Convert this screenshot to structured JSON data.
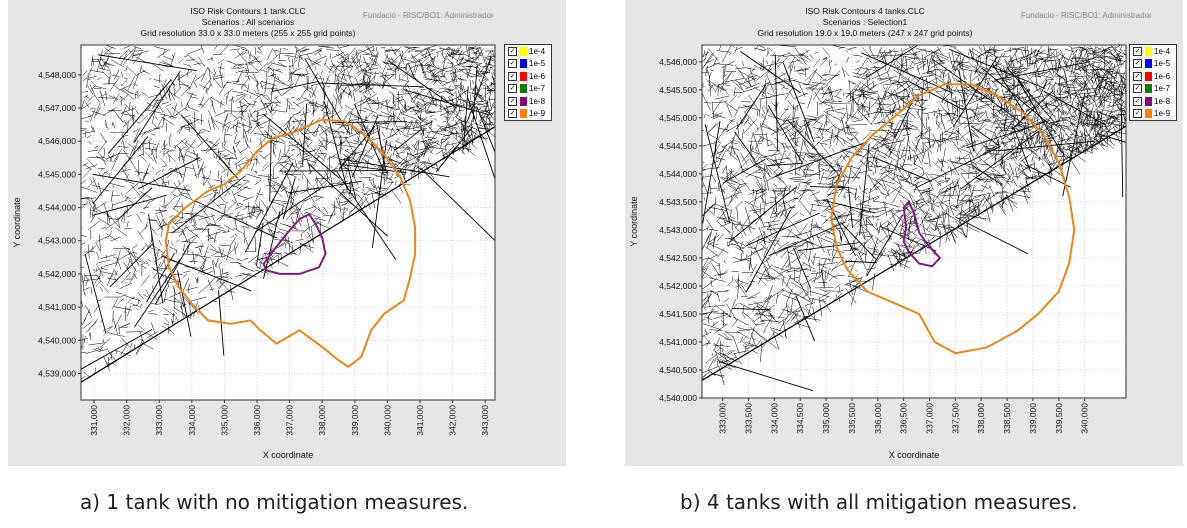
{
  "chart_data": [
    {
      "type": "contour-map",
      "title": "ISO Risk Contours  1 tank.CLC",
      "subtitle_1": "Scenarios : All scenarios",
      "subtitle_2": "Grid resolution 33.0 x 33.0 meters (255 x 255 grid points)",
      "user_info": "Fundacio - RISC/BO1: Administrador",
      "xlabel": "X coordinate",
      "ylabel": "Y coordinate",
      "xlim": [
        330600,
        343300
      ],
      "ylim": [
        4538200,
        4548900
      ],
      "x_ticks": [
        331000,
        332000,
        333000,
        334000,
        335000,
        336000,
        337000,
        338000,
        339000,
        340000,
        341000,
        342000,
        343000
      ],
      "x_tick_labels": [
        "331,000",
        "332,000",
        "333,000",
        "334,000",
        "335,000",
        "336,000",
        "337,000",
        "338,000",
        "339,000",
        "340,000",
        "341,000",
        "342,000",
        "343,000"
      ],
      "y_ticks": [
        4539000,
        4540000,
        4541000,
        4542000,
        4543000,
        4544000,
        4545000,
        4546000,
        4547000,
        4548000
      ],
      "y_tick_labels": [
        "4,539,000",
        "4,540,000",
        "4,541,000",
        "4,542,000",
        "4,543,000",
        "4,544,000",
        "4,545,000",
        "4,546,000",
        "4,547,000",
        "4,548,000"
      ],
      "legend": [
        {
          "label": "1e-4",
          "color": "#ffff00",
          "checked": true
        },
        {
          "label": "1e-5",
          "color": "#0000ff",
          "checked": true
        },
        {
          "label": "1e-6",
          "color": "#ff0000",
          "checked": true
        },
        {
          "label": "1e-7",
          "color": "#008000",
          "checked": true
        },
        {
          "label": "1e-8",
          "color": "#800080",
          "checked": true
        },
        {
          "label": "1e-9",
          "color": "#ff8000",
          "checked": true
        }
      ],
      "contours": [
        {
          "name": "1e-9",
          "color": "#e8851e",
          "points": [
            [
              333300,
              4543500
            ],
            [
              333800,
              4544000
            ],
            [
              334500,
              4544500
            ],
            [
              335000,
              4544700
            ],
            [
              335500,
              4545100
            ],
            [
              336000,
              4545700
            ],
            [
              336500,
              4546100
            ],
            [
              337200,
              4546300
            ],
            [
              338000,
              4546650
            ],
            [
              338700,
              4546600
            ],
            [
              339300,
              4546200
            ],
            [
              339900,
              4545600
            ],
            [
              340400,
              4544900
            ],
            [
              340700,
              4544200
            ],
            [
              340850,
              4543400
            ],
            [
              340850,
              4542600
            ],
            [
              340700,
              4541900
            ],
            [
              340500,
              4541200
            ],
            [
              339900,
              4540800
            ],
            [
              339500,
              4540300
            ],
            [
              339200,
              4539500
            ],
            [
              338800,
              4539200
            ],
            [
              338500,
              4539400
            ],
            [
              338000,
              4539800
            ],
            [
              337300,
              4540300
            ],
            [
              336600,
              4539900
            ],
            [
              336100,
              4540300
            ],
            [
              335800,
              4540600
            ],
            [
              335200,
              4540500
            ],
            [
              334500,
              4540600
            ],
            [
              334000,
              4541100
            ],
            [
              333600,
              4541600
            ],
            [
              333300,
              4542200
            ],
            [
              333200,
              4543000
            ],
            [
              333300,
              4543500
            ]
          ]
        },
        {
          "name": "1e-8",
          "color": "#7a1f7a",
          "points": [
            [
              336200,
              4542300
            ],
            [
              336500,
              4542700
            ],
            [
              336900,
              4543200
            ],
            [
              337300,
              4543650
            ],
            [
              337600,
              4543800
            ],
            [
              337800,
              4543500
            ],
            [
              338000,
              4543100
            ],
            [
              338100,
              4542600
            ],
            [
              337900,
              4542200
            ],
            [
              337300,
              4542000
            ],
            [
              336700,
              4542000
            ],
            [
              336300,
              4542100
            ],
            [
              336200,
              4542300
            ]
          ]
        }
      ]
    },
    {
      "type": "contour-map",
      "title": "ISO Risk Contours  4 tanks.CLC",
      "subtitle_1": "Scenarios : Selection1",
      "subtitle_2": "Grid resolution 19.0 x 19.0 meters (247 x 247 grid points)",
      "user_info": "Fundacio - RISC/BO1: Administrador",
      "xlabel": "X coordinate",
      "ylabel": "Y coordinate",
      "xlim": [
        332600,
        340800
      ],
      "ylim": [
        4540000,
        4546300
      ],
      "x_ticks": [
        333000,
        333500,
        334000,
        334500,
        335000,
        335500,
        336000,
        336500,
        337000,
        337500,
        338000,
        338500,
        339000,
        339500,
        340000
      ],
      "x_tick_labels": [
        "333,000",
        "333,500",
        "334,000",
        "334,500",
        "335,000",
        "335,500",
        "336,000",
        "336,500",
        "337,000",
        "337,500",
        "338,000",
        "338,500",
        "339,000",
        "339,500",
        "340,000"
      ],
      "y_ticks": [
        4540000,
        4540500,
        4541000,
        4541500,
        4542000,
        4542500,
        4543000,
        4543500,
        4544000,
        4544500,
        4545000,
        4545500,
        4546000
      ],
      "y_tick_labels": [
        "4,540,000",
        "4,540,500",
        "4,541,000",
        "4,541,500",
        "4,542,000",
        "4,542,500",
        "4,543,000",
        "4,543,500",
        "4,544,000",
        "4,544,500",
        "4,545,000",
        "4,545,500",
        "4,546,000"
      ],
      "legend": [
        {
          "label": "1e-4",
          "color": "#ffff00",
          "checked": true
        },
        {
          "label": "1e-5",
          "color": "#0000ff",
          "checked": true
        },
        {
          "label": "1e-6",
          "color": "#ff0000",
          "checked": true
        },
        {
          "label": "1e-7",
          "color": "#008000",
          "checked": true
        },
        {
          "label": "1e-8",
          "color": "#800080",
          "checked": true
        },
        {
          "label": "1e-9",
          "color": "#ff8000",
          "checked": true
        }
      ],
      "contours": [
        {
          "name": "1e-9",
          "color": "#e8851e",
          "points": [
            [
              335100,
              4543200
            ],
            [
              335200,
              4543800
            ],
            [
              335500,
              4544300
            ],
            [
              335900,
              4544700
            ],
            [
              336300,
              4545000
            ],
            [
              336800,
              4545400
            ],
            [
              337300,
              4545600
            ],
            [
              337800,
              4545600
            ],
            [
              338300,
              4545400
            ],
            [
              338800,
              4545100
            ],
            [
              339200,
              4544700
            ],
            [
              339500,
              4544200
            ],
            [
              339700,
              4543600
            ],
            [
              339800,
              4543000
            ],
            [
              339700,
              4542400
            ],
            [
              339500,
              4541900
            ],
            [
              339100,
              4541500
            ],
            [
              338700,
              4541200
            ],
            [
              338100,
              4540900
            ],
            [
              337500,
              4540800
            ],
            [
              337100,
              4541000
            ],
            [
              336800,
              4541500
            ],
            [
              336300,
              4541700
            ],
            [
              335800,
              4541900
            ],
            [
              335400,
              4542300
            ],
            [
              335200,
              4542700
            ],
            [
              335100,
              4543200
            ]
          ]
        },
        {
          "name": "1e-8",
          "color": "#7a1f7a",
          "points": [
            [
              336500,
              4543400
            ],
            [
              336600,
              4543500
            ],
            [
              336700,
              4543300
            ],
            [
              336800,
              4542950
            ],
            [
              337000,
              4542700
            ],
            [
              337200,
              4542500
            ],
            [
              337050,
              4542350
            ],
            [
              336800,
              4542400
            ],
            [
              336600,
              4542600
            ],
            [
              336500,
              4542800
            ],
            [
              336550,
              4543050
            ],
            [
              336500,
              4543400
            ]
          ]
        }
      ]
    }
  ],
  "captions": [
    "a) 1 tank with no mitigation measures.",
    "b) 4 tanks with all mitigation measures."
  ]
}
